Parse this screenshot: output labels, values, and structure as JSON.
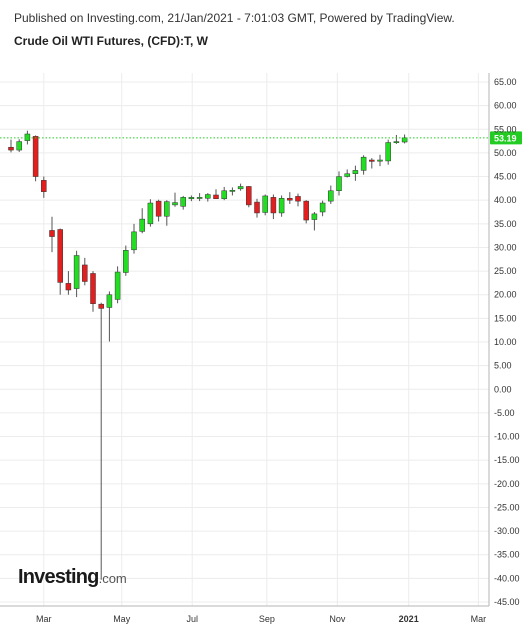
{
  "header": {
    "published_line": "Published on Investing.com, 21/Jan/2021 - 7:01:03 GMT, Powered by TradingView.",
    "chart_title": "Crude Oil WTI Futures, (CFD):T, W"
  },
  "logo": {
    "main": "Investing",
    "suffix": ".com"
  },
  "colors": {
    "up": "#22dd22",
    "down": "#e21e1e",
    "wick": "#555555",
    "grid": "#ececec",
    "last_price_line": "#22cc22",
    "last_price_badge": "#22cc22"
  },
  "chart_data": {
    "type": "candlestick",
    "title": "Crude Oil WTI Futures, (CFD):T, W",
    "y_axis_side": "right",
    "ylim": [
      -45,
      65
    ],
    "y_ticks": [
      "65.00",
      "60.00",
      "55.00",
      "50.00",
      "45.00",
      "40.00",
      "35.00",
      "30.00",
      "25.00",
      "20.00",
      "15.00",
      "10.00",
      "5.00",
      "0.00",
      "-5.00",
      "-10.00",
      "-15.00",
      "-20.00",
      "-25.00",
      "-30.00",
      "-35.00",
      "-40.00",
      "-45.00"
    ],
    "x_ticks": [
      {
        "label": "Mar",
        "week": 4
      },
      {
        "label": "May",
        "week": 13.5
      },
      {
        "label": "Jul",
        "week": 22.1
      },
      {
        "label": "Sep",
        "week": 31.2
      },
      {
        "label": "Nov",
        "week": 39.8
      },
      {
        "label": "2021",
        "week": 48.5
      },
      {
        "label": "Mar",
        "week": 57
      }
    ],
    "last_price": 53.19,
    "last_price_label": "53.19",
    "grid": true,
    "candles": [
      {
        "o": 51.2,
        "h": 52.8,
        "l": 50.1,
        "c": 50.6
      },
      {
        "o": 50.6,
        "h": 52.9,
        "l": 50.2,
        "c": 52.4
      },
      {
        "o": 52.6,
        "h": 54.7,
        "l": 51.8,
        "c": 54.0
      },
      {
        "o": 53.5,
        "h": 53.7,
        "l": 44.0,
        "c": 45.0
      },
      {
        "o": 44.2,
        "h": 45.0,
        "l": 40.5,
        "c": 41.8
      },
      {
        "o": 33.6,
        "h": 36.5,
        "l": 29.0,
        "c": 32.3
      },
      {
        "o": 33.8,
        "h": 34.0,
        "l": 20.0,
        "c": 22.6
      },
      {
        "o": 22.4,
        "h": 25.0,
        "l": 20.0,
        "c": 21.0
      },
      {
        "o": 21.3,
        "h": 29.3,
        "l": 19.5,
        "c": 28.3
      },
      {
        "o": 26.3,
        "h": 27.8,
        "l": 22.0,
        "c": 22.8
      },
      {
        "o": 24.5,
        "h": 25.0,
        "l": 16.4,
        "c": 18.1
      },
      {
        "o": 18.0,
        "h": 18.3,
        "l": -40.3,
        "c": 17.1
      },
      {
        "o": 17.3,
        "h": 20.7,
        "l": 10.1,
        "c": 20.0
      },
      {
        "o": 19.0,
        "h": 26.0,
        "l": 18.2,
        "c": 24.8
      },
      {
        "o": 24.7,
        "h": 30.4,
        "l": 24.0,
        "c": 29.4
      },
      {
        "o": 29.5,
        "h": 35.0,
        "l": 28.7,
        "c": 33.3
      },
      {
        "o": 33.4,
        "h": 38.3,
        "l": 33.0,
        "c": 36.0
      },
      {
        "o": 35.0,
        "h": 40.2,
        "l": 34.4,
        "c": 39.4
      },
      {
        "o": 39.8,
        "h": 40.1,
        "l": 35.5,
        "c": 36.6
      },
      {
        "o": 36.6,
        "h": 40.0,
        "l": 34.6,
        "c": 39.7
      },
      {
        "o": 39.0,
        "h": 41.6,
        "l": 38.6,
        "c": 39.5
      },
      {
        "o": 38.7,
        "h": 40.9,
        "l": 38.0,
        "c": 40.6
      },
      {
        "o": 40.3,
        "h": 41.0,
        "l": 39.8,
        "c": 40.6
      },
      {
        "o": 40.5,
        "h": 41.5,
        "l": 39.8,
        "c": 40.6
      },
      {
        "o": 40.4,
        "h": 41.5,
        "l": 39.7,
        "c": 41.2
      },
      {
        "o": 41.1,
        "h": 42.3,
        "l": 40.7,
        "c": 40.3
      },
      {
        "o": 40.3,
        "h": 42.8,
        "l": 40.0,
        "c": 42.0
      },
      {
        "o": 42.0,
        "h": 42.7,
        "l": 41.0,
        "c": 42.1
      },
      {
        "o": 42.4,
        "h": 43.5,
        "l": 42.0,
        "c": 42.9
      },
      {
        "o": 42.9,
        "h": 43.0,
        "l": 38.5,
        "c": 39.0
      },
      {
        "o": 39.6,
        "h": 40.3,
        "l": 36.3,
        "c": 37.3
      },
      {
        "o": 37.4,
        "h": 41.2,
        "l": 36.8,
        "c": 40.9
      },
      {
        "o": 40.6,
        "h": 41.2,
        "l": 36.0,
        "c": 37.3
      },
      {
        "o": 37.3,
        "h": 41.0,
        "l": 36.5,
        "c": 40.4
      },
      {
        "o": 40.4,
        "h": 41.7,
        "l": 39.2,
        "c": 40.0
      },
      {
        "o": 40.8,
        "h": 41.4,
        "l": 38.7,
        "c": 39.8
      },
      {
        "o": 39.8,
        "h": 40.0,
        "l": 35.1,
        "c": 35.8
      },
      {
        "o": 35.9,
        "h": 37.5,
        "l": 33.6,
        "c": 37.1
      },
      {
        "o": 37.5,
        "h": 39.9,
        "l": 36.6,
        "c": 39.4
      },
      {
        "o": 39.8,
        "h": 43.1,
        "l": 39.2,
        "c": 42.0
      },
      {
        "o": 42.0,
        "h": 46.1,
        "l": 41.0,
        "c": 45.0
      },
      {
        "o": 45.0,
        "h": 46.5,
        "l": 44.8,
        "c": 45.6
      },
      {
        "o": 45.6,
        "h": 47.3,
        "l": 44.1,
        "c": 46.3
      },
      {
        "o": 46.3,
        "h": 49.5,
        "l": 45.4,
        "c": 49.1
      },
      {
        "o": 48.5,
        "h": 48.9,
        "l": 46.7,
        "c": 48.2
      },
      {
        "o": 48.3,
        "h": 49.6,
        "l": 47.2,
        "c": 48.5
      },
      {
        "o": 48.3,
        "h": 52.8,
        "l": 47.5,
        "c": 52.2
      },
      {
        "o": 52.2,
        "h": 53.8,
        "l": 51.9,
        "c": 52.4
      },
      {
        "o": 52.3,
        "h": 53.9,
        "l": 52.0,
        "c": 53.2
      }
    ]
  }
}
